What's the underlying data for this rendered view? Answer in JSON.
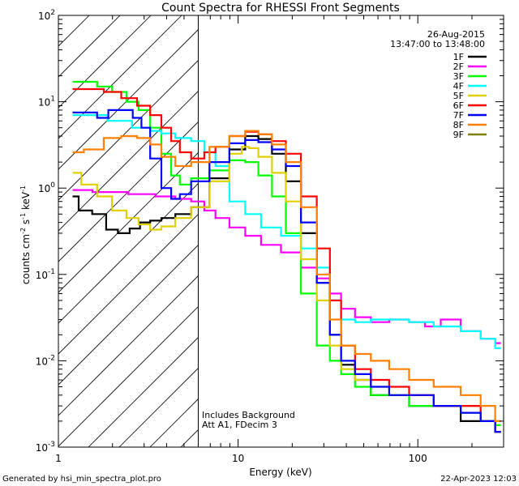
{
  "chart_data": {
    "type": "line",
    "title": "Count Spectra for RHESSI Front Segments",
    "xlabel": "Energy (keV)",
    "ylabel_parts": [
      "counts cm",
      "-2",
      " s",
      "-1",
      " keV",
      "-1"
    ],
    "xscale": "log",
    "yscale": "log",
    "xlim": [
      1,
      300
    ],
    "ylim": [
      0.001,
      100
    ],
    "x_ticks": [
      {
        "value": 1,
        "label": "1"
      },
      {
        "value": 10,
        "label": "10"
      },
      {
        "value": 100,
        "label": "100"
      }
    ],
    "y_ticks": [
      {
        "value": 0.001,
        "base": "10",
        "exp": "-3"
      },
      {
        "value": 0.01,
        "base": "10",
        "exp": "-2"
      },
      {
        "value": 0.1,
        "base": "10",
        "exp": "-1"
      },
      {
        "value": 1,
        "base": "10",
        "exp": "0"
      },
      {
        "value": 10,
        "base": "10",
        "exp": "1"
      },
      {
        "value": 100,
        "base": "10",
        "exp": "2"
      }
    ],
    "date": "26-Aug-2015",
    "time_range": "13:47:00 to 13:48:00",
    "attenuator_line_keV": 6,
    "annotations": [
      "Includes Background",
      "Att A1, FDecim 3"
    ],
    "legend_position": "top-right",
    "series": [
      {
        "name": "1F",
        "color": "#000000",
        "points": [
          [
            1.2,
            0.8
          ],
          [
            1.4,
            0.55
          ],
          [
            1.7,
            0.5
          ],
          [
            2.0,
            0.33
          ],
          [
            2.3,
            0.3
          ],
          [
            2.7,
            0.34
          ],
          [
            3.0,
            0.4
          ],
          [
            3.5,
            0.42
          ],
          [
            4.0,
            0.45
          ],
          [
            5.0,
            0.5
          ],
          [
            6.0,
            0.6
          ],
          [
            8.0,
            1.3
          ],
          [
            10,
            2.8
          ],
          [
            12,
            4.0
          ],
          [
            14,
            3.7
          ],
          [
            17,
            2.5
          ],
          [
            20,
            1.2
          ],
          [
            25,
            0.3
          ],
          [
            30,
            0.08
          ],
          [
            35,
            0.02
          ],
          [
            40,
            0.009
          ],
          [
            50,
            0.006
          ],
          [
            60,
            0.004
          ],
          [
            80,
            0.004
          ],
          [
            100,
            0.003
          ],
          [
            150,
            0.003
          ],
          [
            200,
            0.002
          ],
          [
            250,
            0.002
          ],
          [
            290,
            0.0015
          ]
        ]
      },
      {
        "name": "2F",
        "color": "#ff00ff",
        "points": [
          [
            1.2,
            0.95
          ],
          [
            2.0,
            0.9
          ],
          [
            3.0,
            0.85
          ],
          [
            4.0,
            0.8
          ],
          [
            5.0,
            0.75
          ],
          [
            6.0,
            0.7
          ],
          [
            7.0,
            0.55
          ],
          [
            8.0,
            0.45
          ],
          [
            10,
            0.35
          ],
          [
            12,
            0.28
          ],
          [
            15,
            0.22
          ],
          [
            20,
            0.18
          ],
          [
            25,
            0.12
          ],
          [
            30,
            0.09
          ],
          [
            35,
            0.06
          ],
          [
            40,
            0.04
          ],
          [
            50,
            0.032
          ],
          [
            60,
            0.028
          ],
          [
            80,
            0.03
          ],
          [
            100,
            0.028
          ],
          [
            120,
            0.025
          ],
          [
            150,
            0.03
          ],
          [
            200,
            0.022
          ],
          [
            250,
            0.018
          ],
          [
            290,
            0.016
          ]
        ]
      },
      {
        "name": "3F",
        "color": "#00ff00",
        "points": [
          [
            1.2,
            17
          ],
          [
            1.5,
            17
          ],
          [
            1.8,
            15
          ],
          [
            2.2,
            13
          ],
          [
            2.6,
            10
          ],
          [
            3.0,
            8
          ],
          [
            3.5,
            5
          ],
          [
            4.0,
            2.5
          ],
          [
            4.5,
            1.4
          ],
          [
            5.0,
            1.1
          ],
          [
            6.0,
            1.3
          ],
          [
            8.0,
            1.6
          ],
          [
            10,
            2.1
          ],
          [
            12,
            2.0
          ],
          [
            14,
            1.4
          ],
          [
            17,
            0.8
          ],
          [
            20,
            0.3
          ],
          [
            25,
            0.06
          ],
          [
            30,
            0.015
          ],
          [
            35,
            0.01
          ],
          [
            40,
            0.007
          ],
          [
            50,
            0.005
          ],
          [
            60,
            0.004
          ],
          [
            80,
            0.004
          ],
          [
            100,
            0.003
          ],
          [
            150,
            0.003
          ],
          [
            200,
            0.0025
          ],
          [
            250,
            0.002
          ],
          [
            290,
            0.0018
          ]
        ]
      },
      {
        "name": "4F",
        "color": "#00ffff",
        "points": [
          [
            1.2,
            7
          ],
          [
            1.6,
            7
          ],
          [
            2.2,
            6
          ],
          [
            3.0,
            5
          ],
          [
            3.5,
            4.6
          ],
          [
            4.0,
            4.3
          ],
          [
            5.0,
            3.8
          ],
          [
            6.0,
            3.5
          ],
          [
            7.0,
            2.6
          ],
          [
            8.0,
            1.8
          ],
          [
            10,
            0.7
          ],
          [
            12,
            0.5
          ],
          [
            15,
            0.35
          ],
          [
            20,
            0.28
          ],
          [
            25,
            0.2
          ],
          [
            30,
            0.12
          ],
          [
            35,
            0.05
          ],
          [
            40,
            0.03
          ],
          [
            50,
            0.028
          ],
          [
            60,
            0.03
          ],
          [
            80,
            0.03
          ],
          [
            100,
            0.028
          ],
          [
            150,
            0.025
          ],
          [
            200,
            0.022
          ],
          [
            250,
            0.018
          ],
          [
            290,
            0.014
          ]
        ]
      },
      {
        "name": "5F",
        "color": "#e0d000",
        "points": [
          [
            1.2,
            1.5
          ],
          [
            1.5,
            1.1
          ],
          [
            1.8,
            0.8
          ],
          [
            2.2,
            0.55
          ],
          [
            2.6,
            0.45
          ],
          [
            3.0,
            0.38
          ],
          [
            3.5,
            0.33
          ],
          [
            4.0,
            0.36
          ],
          [
            5.0,
            0.45
          ],
          [
            6.0,
            0.6
          ],
          [
            8.0,
            1.2
          ],
          [
            10,
            2.5
          ],
          [
            11,
            3.0
          ],
          [
            12,
            2.9
          ],
          [
            14,
            2.3
          ],
          [
            17,
            1.5
          ],
          [
            20,
            0.7
          ],
          [
            25,
            0.15
          ],
          [
            30,
            0.05
          ],
          [
            35,
            0.015
          ],
          [
            40,
            0.008
          ],
          [
            50,
            0.006
          ],
          [
            60,
            0.005
          ],
          [
            80,
            0.004
          ],
          [
            100,
            0.004
          ],
          [
            150,
            0.003
          ],
          [
            200,
            0.003
          ],
          [
            250,
            0.002
          ],
          [
            290,
            0.0015
          ]
        ]
      },
      {
        "name": "6F",
        "color": "#ff0000",
        "points": [
          [
            1.2,
            14
          ],
          [
            1.6,
            14
          ],
          [
            2.0,
            13
          ],
          [
            2.5,
            11
          ],
          [
            3.0,
            9
          ],
          [
            3.5,
            7
          ],
          [
            4.0,
            5
          ],
          [
            4.5,
            3.5
          ],
          [
            5.0,
            2.6
          ],
          [
            6.0,
            2.2
          ],
          [
            7.0,
            2.6
          ],
          [
            8.0,
            3.0
          ],
          [
            10,
            4.0
          ],
          [
            12,
            4.5
          ],
          [
            14,
            4.2
          ],
          [
            17,
            3.5
          ],
          [
            20,
            2.5
          ],
          [
            25,
            0.8
          ],
          [
            30,
            0.2
          ],
          [
            35,
            0.05
          ],
          [
            40,
            0.015
          ],
          [
            50,
            0.008
          ],
          [
            60,
            0.006
          ],
          [
            80,
            0.005
          ],
          [
            100,
            0.004
          ],
          [
            150,
            0.003
          ],
          [
            200,
            0.003
          ],
          [
            250,
            0.002
          ],
          [
            290,
            0.0015
          ]
        ]
      },
      {
        "name": "7F",
        "color": "#0000ff",
        "points": [
          [
            1.2,
            7.5
          ],
          [
            1.5,
            7.5
          ],
          [
            1.8,
            6.5
          ],
          [
            2.0,
            8
          ],
          [
            2.4,
            8
          ],
          [
            2.8,
            6.5
          ],
          [
            3.0,
            5
          ],
          [
            3.5,
            2.2
          ],
          [
            4.0,
            1.0
          ],
          [
            4.5,
            0.75
          ],
          [
            5.0,
            0.85
          ],
          [
            6.0,
            1.2
          ],
          [
            8.0,
            2.0
          ],
          [
            10,
            3.3
          ],
          [
            12,
            3.6
          ],
          [
            14,
            3.4
          ],
          [
            17,
            2.8
          ],
          [
            20,
            1.8
          ],
          [
            25,
            0.4
          ],
          [
            30,
            0.08
          ],
          [
            35,
            0.02
          ],
          [
            40,
            0.01
          ],
          [
            50,
            0.007
          ],
          [
            60,
            0.005
          ],
          [
            80,
            0.004
          ],
          [
            100,
            0.004
          ],
          [
            150,
            0.003
          ],
          [
            200,
            0.0025
          ],
          [
            250,
            0.002
          ],
          [
            290,
            0.0015
          ]
        ]
      },
      {
        "name": "8F",
        "color": "#ff8000",
        "points": [
          [
            1.2,
            2.6
          ],
          [
            1.6,
            2.8
          ],
          [
            2.0,
            3.8
          ],
          [
            2.5,
            4.0
          ],
          [
            3.0,
            3.8
          ],
          [
            3.5,
            3.2
          ],
          [
            4.0,
            2.3
          ],
          [
            5.0,
            1.8
          ],
          [
            6.0,
            2.0
          ],
          [
            8.0,
            3.0
          ],
          [
            10,
            4.0
          ],
          [
            12,
            4.6
          ],
          [
            14,
            4.2
          ],
          [
            17,
            3.2
          ],
          [
            20,
            2.0
          ],
          [
            25,
            0.6
          ],
          [
            30,
            0.1
          ],
          [
            35,
            0.03
          ],
          [
            40,
            0.015
          ],
          [
            50,
            0.012
          ],
          [
            60,
            0.01
          ],
          [
            80,
            0.008
          ],
          [
            100,
            0.006
          ],
          [
            150,
            0.005
          ],
          [
            200,
            0.004
          ],
          [
            250,
            0.003
          ],
          [
            290,
            0.002
          ]
        ]
      },
      {
        "name": "9F",
        "color": "#808000",
        "points": []
      }
    ]
  },
  "footer": {
    "generated_by": "Generated by hsi_min_spectra_plot.pro",
    "timestamp": "22-Apr-2023 12:03"
  }
}
